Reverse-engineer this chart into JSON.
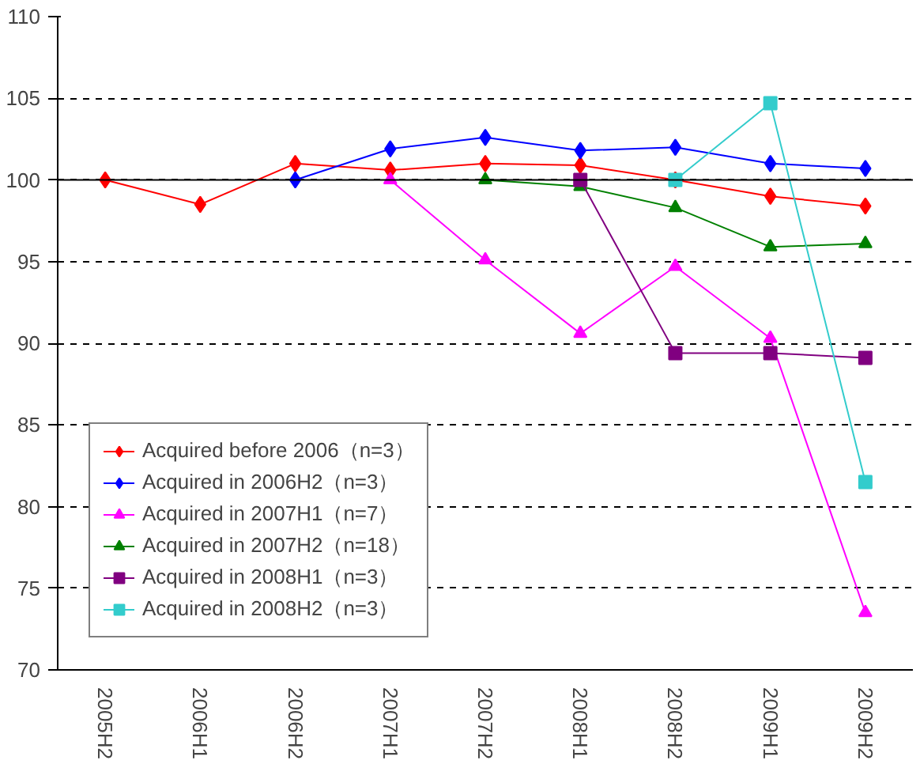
{
  "chart_data": {
    "type": "line",
    "categories": [
      "2005H2",
      "2006H1",
      "2006H2",
      "2007H1",
      "2007H2",
      "2008H1",
      "2008H2",
      "2009H1",
      "2009H2"
    ],
    "ylim": [
      70,
      110
    ],
    "yticks": [
      70,
      75,
      80,
      85,
      90,
      95,
      100,
      105,
      110
    ],
    "grid": "y",
    "legend": "bottom left",
    "ref_lines": [
      {
        "axis": "y",
        "value": 100,
        "color": "#000000",
        "line_style": "solid"
      }
    ],
    "series": [
      {
        "name": "Acquired before 2006（n=3）",
        "color": "#ff0000",
        "marker": "diamond",
        "values": [
          100,
          98.5,
          101,
          100.6,
          101,
          100.9,
          100,
          99,
          98.4
        ]
      },
      {
        "name": "Acquired in 2006H2（n=3）",
        "color": "#0000ff",
        "marker": "diamond",
        "values": [
          null,
          null,
          100,
          101.9,
          102.6,
          101.8,
          102,
          101,
          100.7
        ]
      },
      {
        "name": "Acquired in 2007H1（n=7）",
        "color": "#ff00ff",
        "marker": "triangle",
        "values": [
          null,
          null,
          null,
          100,
          95.1,
          90.6,
          94.7,
          90.3,
          73.5
        ]
      },
      {
        "name": "Acquired in 2007H2（n=18）",
        "color": "#008000",
        "marker": "triangle",
        "values": [
          null,
          null,
          null,
          null,
          100,
          99.6,
          98.3,
          95.9,
          96.1
        ]
      },
      {
        "name": "Acquired in 2008H1（n=3）",
        "color": "#800080",
        "marker": "square",
        "values": [
          null,
          null,
          null,
          null,
          null,
          100,
          89.4,
          89.4,
          89.1
        ]
      },
      {
        "name": "Acquired in 2008H2（n=3）",
        "color": "#33cccc",
        "marker": "square",
        "values": [
          null,
          null,
          null,
          null,
          null,
          null,
          100,
          104.7,
          81.5
        ]
      }
    ]
  }
}
